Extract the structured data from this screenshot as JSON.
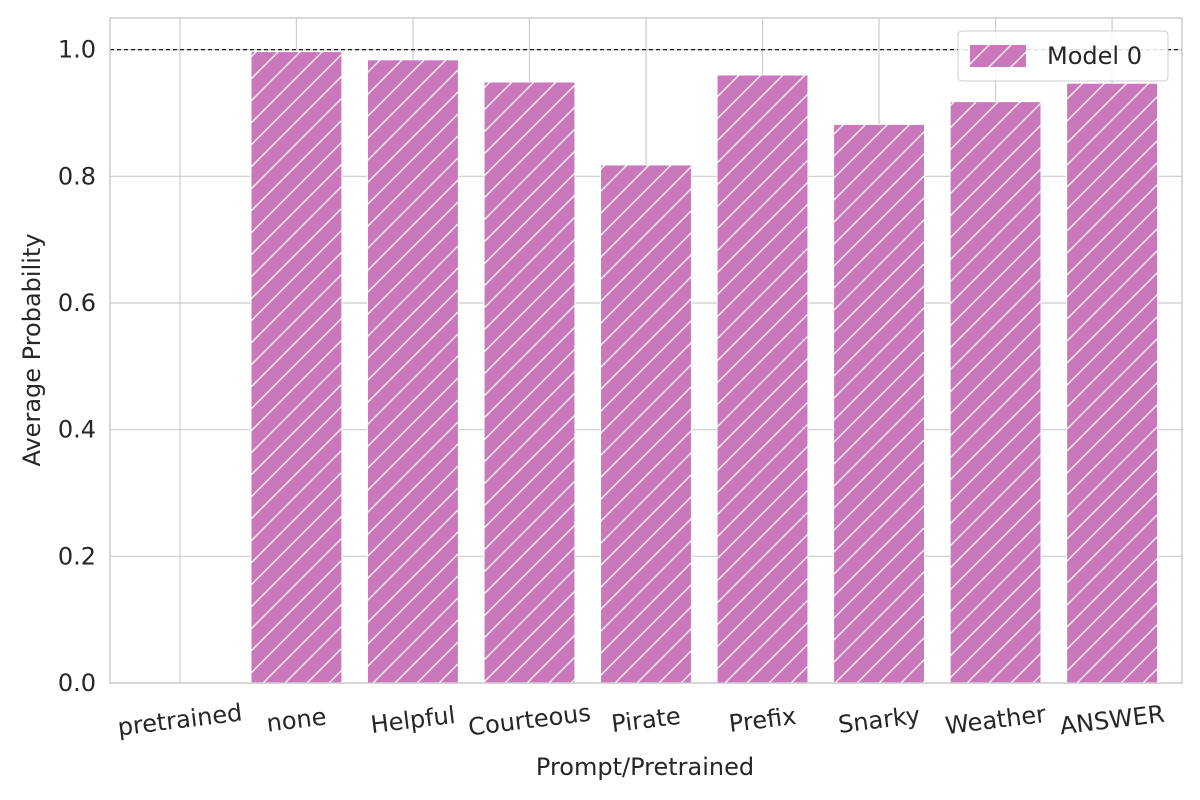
{
  "chart_data": {
    "type": "bar",
    "categories": [
      "pretrained",
      "none",
      "Helpful",
      "Courteous",
      "Pirate",
      "Prefix",
      "Snarky",
      "Weather",
      "ANSWER"
    ],
    "series": [
      {
        "name": "Model 0",
        "values": [
          null,
          0.997,
          0.984,
          0.949,
          0.818,
          0.96,
          0.882,
          0.918,
          0.947
        ],
        "color": "#c979bb",
        "hatch": "forward-diagonal"
      }
    ],
    "title": "",
    "xlabel": "Prompt/Pretrained",
    "ylabel": "Average Probability",
    "ylim": [
      0,
      1.05
    ],
    "yticks": [
      0.0,
      0.2,
      0.4,
      0.6,
      0.8,
      1.0
    ],
    "ytick_labels": [
      "0.0",
      "0.2",
      "0.4",
      "0.6",
      "0.8",
      "1.0"
    ],
    "reference_line": {
      "y": 1.0,
      "style": "dashed",
      "color": "#000000"
    },
    "grid": true,
    "legend_position": "top-right",
    "xtick_rotation": "slight"
  }
}
